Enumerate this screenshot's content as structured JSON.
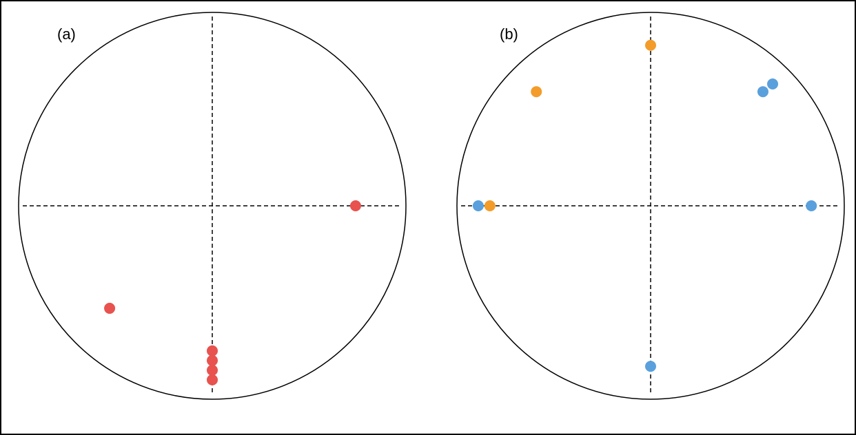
{
  "panels": [
    {
      "label": "(a)",
      "points": [
        {
          "x": 0.74,
          "y": 0.0,
          "color": "#e8524f"
        },
        {
          "x": -0.53,
          "y": -0.53,
          "color": "#e8524f"
        },
        {
          "x": 0.0,
          "y": -0.75,
          "color": "#e8524f"
        },
        {
          "x": 0.0,
          "y": -0.8,
          "color": "#e8524f"
        },
        {
          "x": 0.0,
          "y": -0.85,
          "color": "#e8524f"
        },
        {
          "x": 0.0,
          "y": -0.9,
          "color": "#e8524f"
        }
      ]
    },
    {
      "label": "(b)",
      "points": [
        {
          "x": 0.0,
          "y": 0.83,
          "color": "#f39c2a"
        },
        {
          "x": -0.59,
          "y": 0.59,
          "color": "#f39c2a"
        },
        {
          "x": -0.83,
          "y": 0.0,
          "color": "#f39c2a"
        },
        {
          "x": -0.89,
          "y": 0.0,
          "color": "#5aa0dc"
        },
        {
          "x": 0.83,
          "y": 0.0,
          "color": "#5aa0dc"
        },
        {
          "x": 0.58,
          "y": 0.59,
          "color": "#5aa0dc"
        },
        {
          "x": 0.63,
          "y": 0.63,
          "color": "#5aa0dc"
        },
        {
          "x": 0.0,
          "y": -0.83,
          "color": "#5aa0dc"
        }
      ]
    }
  ]
}
